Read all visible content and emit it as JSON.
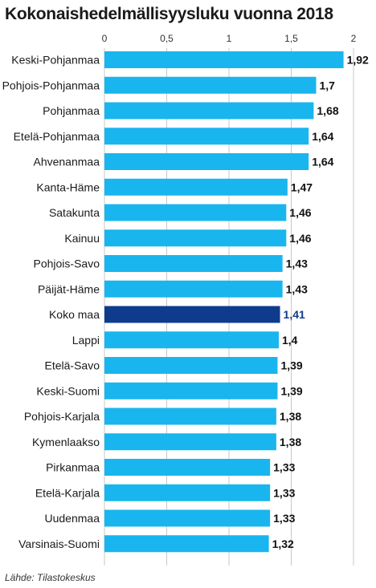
{
  "chart_data": {
    "type": "bar",
    "orientation": "horizontal",
    "title": "Kokonaishedelmällisyysluku vuonna 2018",
    "source": "Lähde: Tilastokeskus",
    "xlabel": "",
    "ylabel": "",
    "xlim": [
      0,
      2
    ],
    "tick_values": [
      0,
      0.5,
      1,
      1.5,
      2
    ],
    "tick_labels": [
      "0",
      "0,5",
      "1",
      "1,5",
      "2"
    ],
    "grid": true,
    "colors": {
      "bar": "#19b5ee",
      "highlight": "#0f3b8c",
      "highlight_label": "#0f3b8c",
      "grid": "#c8c8c8"
    },
    "highlight": "Koko maa",
    "categories": [
      "Keski-Pohjanmaa",
      "Pohjois-Pohjanmaa",
      "Pohjanmaa",
      "Etelä-Pohjanmaa",
      "Ahvenanmaa",
      "Kanta-Häme",
      "Satakunta",
      "Kainuu",
      "Pohjois-Savo",
      "Päijät-Häme",
      "Koko maa",
      "Lappi",
      "Etelä-Savo",
      "Keski-Suomi",
      "Pohjois-Karjala",
      "Kymenlaakso",
      "Pirkanmaa",
      "Etelä-Karjala",
      "Uudenmaa",
      "Varsinais-Suomi"
    ],
    "values": [
      1.92,
      1.7,
      1.68,
      1.64,
      1.64,
      1.47,
      1.46,
      1.46,
      1.43,
      1.43,
      1.41,
      1.4,
      1.39,
      1.39,
      1.38,
      1.38,
      1.33,
      1.33,
      1.33,
      1.32
    ],
    "value_labels": [
      "1,92",
      "1,7",
      "1,68",
      "1,64",
      "1,64",
      "1,47",
      "1,46",
      "1,46",
      "1,43",
      "1,43",
      "1,41",
      "1,4",
      "1,39",
      "1,39",
      "1,38",
      "1,38",
      "1,33",
      "1,33",
      "1,33",
      "1,32"
    ]
  }
}
